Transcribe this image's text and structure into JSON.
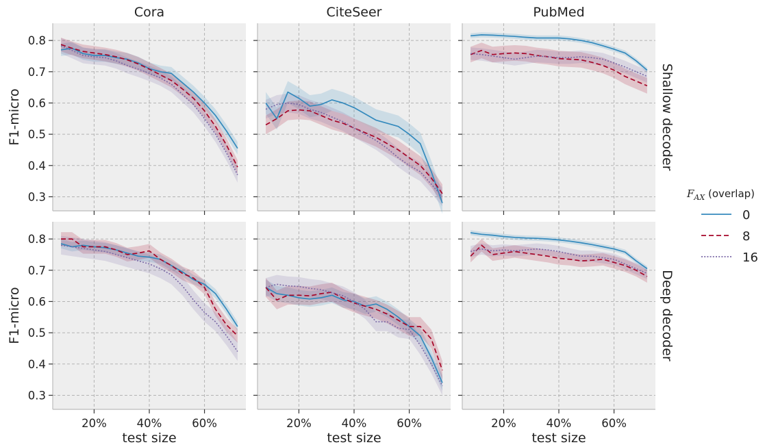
{
  "chart_data": {
    "type": "line",
    "legend": {
      "title_symbol": "F",
      "title_subscript": "AX",
      "title_rest": " (overlap)",
      "placement": "right",
      "entries": [
        "0",
        "8",
        "16"
      ]
    },
    "columns": [
      "Cora",
      "CiteSeer",
      "PubMed"
    ],
    "rows": [
      "Shallow decoder",
      "Deep decoder"
    ],
    "xlabel": "test size",
    "ylabel": "F1-micro",
    "x_unit": "%",
    "xlim": [
      5,
      75
    ],
    "ylim": [
      0.255,
      0.855
    ],
    "xticks": [
      20,
      40,
      60
    ],
    "xtick_labels": [
      "20%",
      "40%",
      "60%"
    ],
    "yticks": [
      0.3,
      0.4,
      0.5,
      0.6,
      0.7,
      0.8
    ],
    "ytick_labels": [
      "0.3",
      "0.4",
      "0.5",
      "0.6",
      "0.7",
      "0.8"
    ],
    "x": [
      8,
      12,
      16,
      20,
      24,
      28,
      32,
      36,
      40,
      44,
      48,
      52,
      56,
      60,
      64,
      68,
      72
    ],
    "colors": {
      "0": "#348abd",
      "8": "#a60628",
      "16": "#7a68a6"
    },
    "line_styles": {
      "0": "solid",
      "8": "dashed",
      "16": "dotted"
    },
    "grid": true,
    "background": "#eeeeee",
    "panels": [
      {
        "row": "Shallow decoder",
        "column": "Cora",
        "series": [
          {
            "name": "0",
            "values": [
              0.77,
              0.775,
              0.758,
              0.752,
              0.752,
              0.745,
              0.74,
              0.728,
              0.71,
              0.7,
              0.695,
              0.665,
              0.635,
              0.6,
              0.56,
              0.51,
              0.455
            ],
            "band": 0.02
          },
          {
            "name": "8",
            "values": [
              0.787,
              0.775,
              0.765,
              0.76,
              0.755,
              0.748,
              0.738,
              0.725,
              0.708,
              0.69,
              0.672,
              0.645,
              0.615,
              0.575,
              0.525,
              0.465,
              0.395
            ],
            "band": 0.022
          },
          {
            "name": "16",
            "values": [
              0.783,
              0.768,
              0.752,
              0.748,
              0.745,
              0.735,
              0.72,
              0.708,
              0.695,
              0.68,
              0.66,
              0.628,
              0.595,
              0.55,
              0.5,
              0.44,
              0.37
            ],
            "band": 0.025
          }
        ]
      },
      {
        "row": "Shallow decoder",
        "column": "CiteSeer",
        "series": [
          {
            "name": "0",
            "values": [
              0.6,
              0.55,
              0.635,
              0.615,
              0.59,
              0.595,
              0.61,
              0.6,
              0.585,
              0.565,
              0.545,
              0.535,
              0.525,
              0.5,
              0.47,
              0.38,
              0.28
            ],
            "band": 0.035
          },
          {
            "name": "8",
            "values": [
              0.53,
              0.55,
              0.575,
              0.578,
              0.575,
              0.56,
              0.545,
              0.535,
              0.52,
              0.505,
              0.49,
              0.47,
              0.45,
              0.425,
              0.4,
              0.36,
              0.31
            ],
            "band": 0.03
          },
          {
            "name": "16",
            "values": [
              0.58,
              0.595,
              0.6,
              0.595,
              0.58,
              0.57,
              0.555,
              0.54,
              0.52,
              0.5,
              0.48,
              0.455,
              0.425,
              0.4,
              0.38,
              0.34,
              0.3
            ],
            "band": 0.03
          }
        ]
      },
      {
        "row": "Shallow decoder",
        "column": "PubMed",
        "series": [
          {
            "name": "0",
            "values": [
              0.815,
              0.818,
              0.817,
              0.815,
              0.813,
              0.81,
              0.808,
              0.808,
              0.808,
              0.805,
              0.8,
              0.793,
              0.783,
              0.772,
              0.76,
              0.735,
              0.705
            ],
            "band": 0.008
          },
          {
            "name": "8",
            "values": [
              0.755,
              0.768,
              0.755,
              0.758,
              0.76,
              0.758,
              0.752,
              0.748,
              0.742,
              0.74,
              0.738,
              0.73,
              0.72,
              0.705,
              0.685,
              0.67,
              0.655
            ],
            "band": 0.025
          },
          {
            "name": "16",
            "values": [
              0.758,
              0.755,
              0.75,
              0.745,
              0.74,
              0.745,
              0.75,
              0.748,
              0.745,
              0.745,
              0.748,
              0.745,
              0.74,
              0.728,
              0.715,
              0.7,
              0.685
            ],
            "band": 0.02
          }
        ]
      },
      {
        "row": "Deep decoder",
        "column": "Cora",
        "series": [
          {
            "name": "0",
            "values": [
              0.785,
              0.775,
              0.78,
              0.775,
              0.772,
              0.765,
              0.755,
              0.745,
              0.742,
              0.735,
              0.715,
              0.695,
              0.67,
              0.655,
              0.625,
              0.575,
              0.52
            ],
            "band": 0.015
          },
          {
            "name": "8",
            "values": [
              0.8,
              0.8,
              0.775,
              0.775,
              0.775,
              0.765,
              0.75,
              0.755,
              0.762,
              0.735,
              0.715,
              0.69,
              0.675,
              0.645,
              0.575,
              0.525,
              0.49
            ],
            "band": 0.022
          },
          {
            "name": "16",
            "values": [
              0.78,
              0.775,
              0.77,
              0.765,
              0.76,
              0.75,
              0.74,
              0.73,
              0.72,
              0.705,
              0.685,
              0.65,
              0.605,
              0.565,
              0.535,
              0.49,
              0.44
            ],
            "band": 0.03
          }
        ]
      },
      {
        "row": "Deep decoder",
        "column": "CiteSeer",
        "series": [
          {
            "name": "0",
            "values": [
              0.645,
              0.625,
              0.62,
              0.612,
              0.608,
              0.612,
              0.62,
              0.605,
              0.6,
              0.585,
              0.592,
              0.575,
              0.55,
              0.52,
              0.49,
              0.42,
              0.34
            ],
            "band": 0.025
          },
          {
            "name": "8",
            "values": [
              0.645,
              0.605,
              0.62,
              0.62,
              0.618,
              0.625,
              0.63,
              0.61,
              0.595,
              0.585,
              0.575,
              0.56,
              0.54,
              0.52,
              0.52,
              0.48,
              0.38
            ],
            "band": 0.03
          },
          {
            "name": "16",
            "values": [
              0.645,
              0.655,
              0.65,
              0.648,
              0.642,
              0.638,
              0.628,
              0.618,
              0.6,
              0.575,
              0.535,
              0.535,
              0.515,
              0.51,
              0.46,
              0.4,
              0.33
            ],
            "band": 0.03
          }
        ]
      },
      {
        "row": "Deep decoder",
        "column": "PubMed",
        "series": [
          {
            "name": "0",
            "values": [
              0.82,
              0.815,
              0.812,
              0.808,
              0.805,
              0.803,
              0.802,
              0.8,
              0.797,
              0.793,
              0.788,
              0.782,
              0.775,
              0.768,
              0.758,
              0.73,
              0.705
            ],
            "band": 0.008
          },
          {
            "name": "8",
            "values": [
              0.745,
              0.78,
              0.75,
              0.755,
              0.76,
              0.755,
              0.75,
              0.745,
              0.738,
              0.735,
              0.73,
              0.732,
              0.735,
              0.725,
              0.715,
              0.7,
              0.68
            ],
            "band": 0.02
          },
          {
            "name": "16",
            "values": [
              0.76,
              0.768,
              0.762,
              0.765,
              0.762,
              0.765,
              0.768,
              0.765,
              0.76,
              0.752,
              0.745,
              0.745,
              0.74,
              0.735,
              0.72,
              0.705,
              0.69
            ],
            "band": 0.018
          }
        ]
      }
    ]
  }
}
